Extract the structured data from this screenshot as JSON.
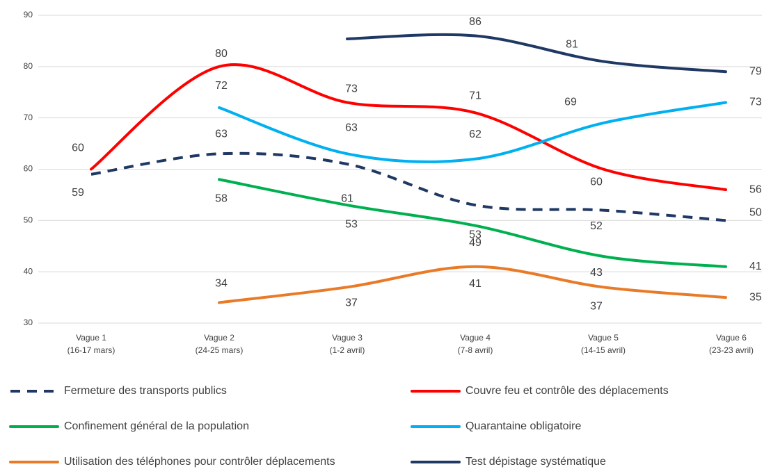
{
  "chart_data": {
    "type": "line",
    "categories": [
      [
        "Vague 1",
        "(16-17 mars)"
      ],
      [
        "Vague 2",
        "(24-25 mars)"
      ],
      [
        "Vague 3",
        "(1-2 avril)"
      ],
      [
        "Vague 4",
        "(7-8 avril)"
      ],
      [
        "Vague 5",
        "(14-15 avril)"
      ],
      [
        "Vague 6",
        "(23-23 avril)"
      ]
    ],
    "ylim": [
      30,
      90
    ],
    "yticks": [
      30,
      40,
      50,
      60,
      70,
      80,
      90
    ],
    "grid": true,
    "smooth": true,
    "legend": "bottom",
    "series": [
      {
        "name": "Fermeture des transports publics",
        "color": "#203864",
        "dash": true,
        "values": [
          59,
          63,
          61,
          53,
          52,
          50
        ]
      },
      {
        "name": "Couvre feu et contrôle des déplacements",
        "color": "#ff0000",
        "values": [
          60,
          80,
          73,
          71,
          60,
          56
        ]
      },
      {
        "name": "Confinement général de la population",
        "color": "#00b050",
        "values": [
          null,
          58,
          53,
          49,
          43,
          41
        ]
      },
      {
        "name": "Quarantaine obligatoire",
        "color": "#00b0f0",
        "values": [
          null,
          72,
          63,
          62,
          69,
          73
        ]
      },
      {
        "name": "Utilisation des téléphones pour contrôler déplacements",
        "color": "#e97a28",
        "values": [
          null,
          34,
          37,
          41,
          37,
          35
        ]
      },
      {
        "name": "Test dépistage systématique",
        "color": "#203864",
        "values": [
          null,
          null,
          85.4,
          86,
          81,
          79
        ],
        "value_labels": [
          null,
          null,
          null,
          "86",
          "81",
          "79"
        ]
      }
    ]
  }
}
